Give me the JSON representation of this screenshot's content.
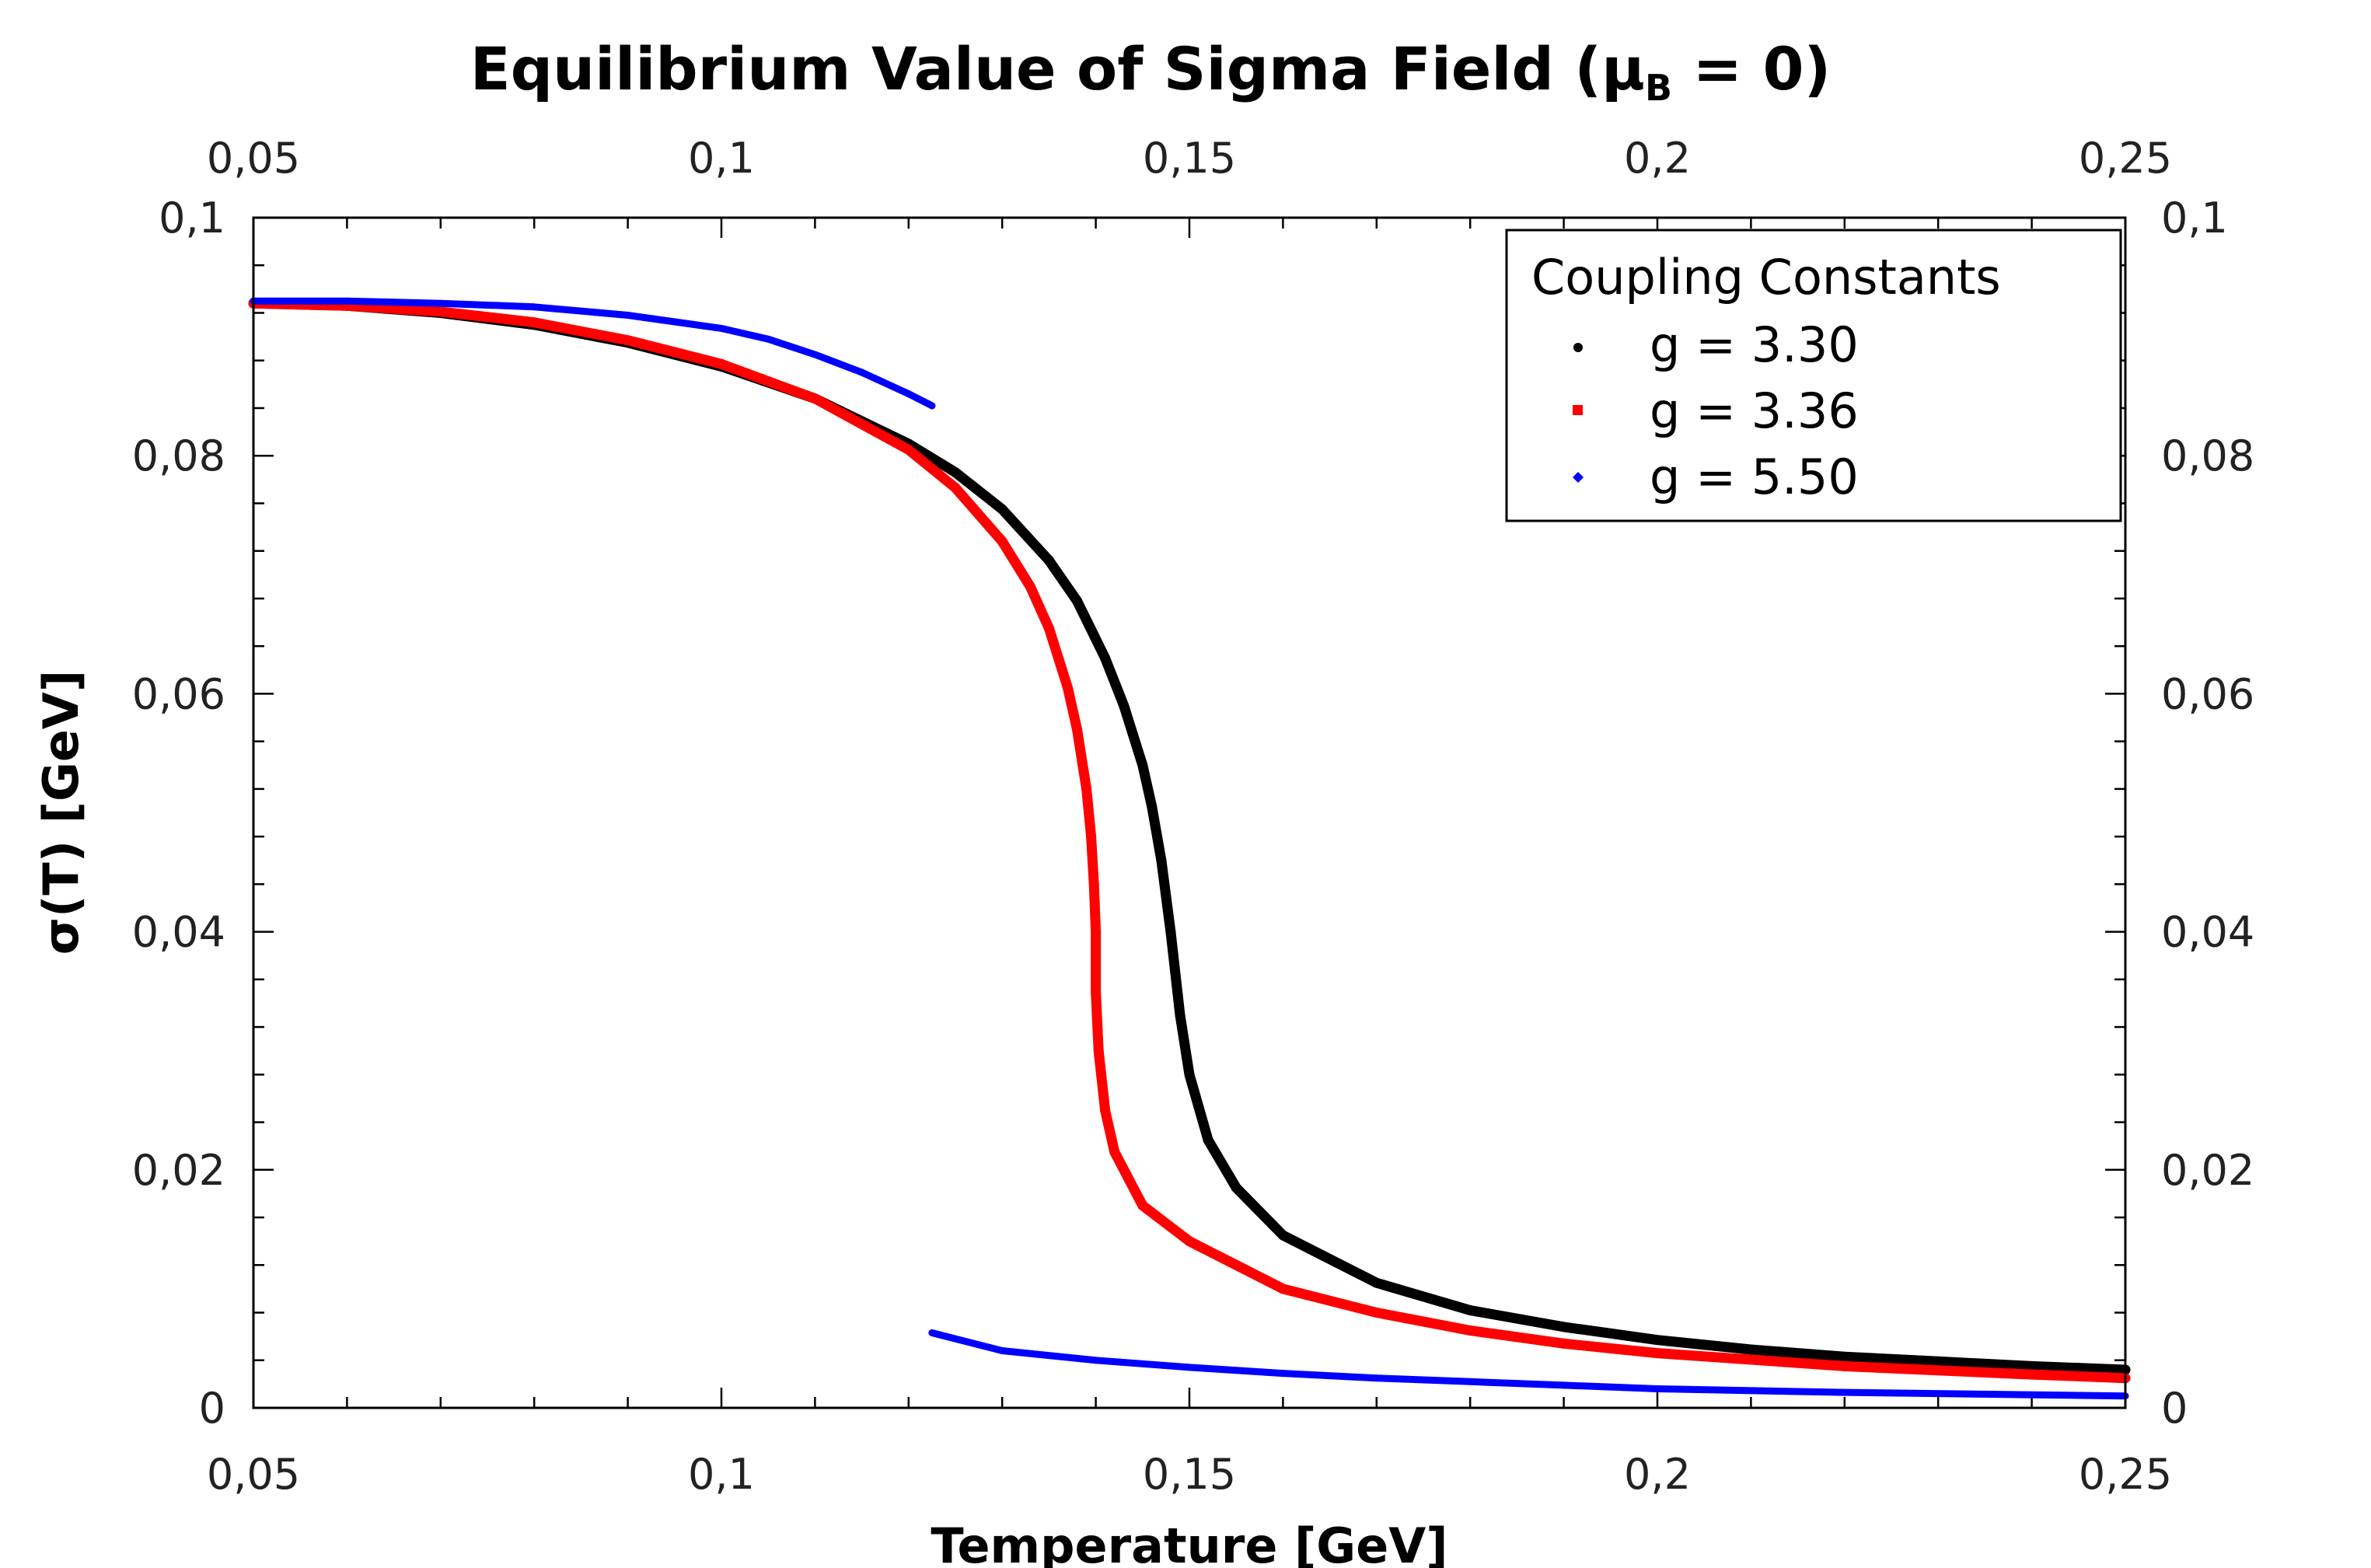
{
  "chart_data": {
    "type": "scatter",
    "title": "Equilibrium Value of Sigma Field (μ",
    "title_sub": "B",
    "title_tail": " = 0)",
    "xlabel": "Temperature [GeV]",
    "ylabel": "σ(T) [GeV]",
    "xlim": [
      0.05,
      0.25
    ],
    "ylim": [
      0,
      0.1
    ],
    "grid": false,
    "x_ticks": [
      0.05,
      0.1,
      0.15,
      0.2,
      0.25
    ],
    "x_tick_labels": [
      "0,05",
      "0,1",
      "0,15",
      "0,2",
      "0,25"
    ],
    "y_ticks": [
      0,
      0.02,
      0.04,
      0.06,
      0.08,
      0.1
    ],
    "y_tick_labels": [
      "0",
      "0,02",
      "0,04",
      "0,06",
      "0,08",
      "0,1"
    ],
    "legend": {
      "title": "Coupling Constants",
      "placement": "top-right",
      "entries": [
        "g = 3.30",
        "g = 3.36",
        "g = 5.50"
      ]
    },
    "series": [
      {
        "name": "g = 3.30",
        "color": "#000000",
        "points": [
          [
            0.05,
            0.0928
          ],
          [
            0.06,
            0.0926
          ],
          [
            0.07,
            0.092
          ],
          [
            0.08,
            0.091
          ],
          [
            0.09,
            0.0895
          ],
          [
            0.1,
            0.0875
          ],
          [
            0.11,
            0.0848
          ],
          [
            0.12,
            0.081
          ],
          [
            0.125,
            0.0786
          ],
          [
            0.13,
            0.0755
          ],
          [
            0.135,
            0.0712
          ],
          [
            0.138,
            0.0678
          ],
          [
            0.141,
            0.063
          ],
          [
            0.143,
            0.059
          ],
          [
            0.145,
            0.054
          ],
          [
            0.146,
            0.0505
          ],
          [
            0.147,
            0.046
          ],
          [
            0.148,
            0.04
          ],
          [
            0.149,
            0.033
          ],
          [
            0.15,
            0.028
          ],
          [
            0.152,
            0.0225
          ],
          [
            0.155,
            0.0185
          ],
          [
            0.16,
            0.0145
          ],
          [
            0.17,
            0.0105
          ],
          [
            0.18,
            0.0082
          ],
          [
            0.19,
            0.0068
          ],
          [
            0.2,
            0.0057
          ],
          [
            0.21,
            0.0049
          ],
          [
            0.22,
            0.0043
          ],
          [
            0.23,
            0.0039
          ],
          [
            0.24,
            0.0035
          ],
          [
            0.25,
            0.0032
          ]
        ]
      },
      {
        "name": "g = 3.36",
        "color": "#ff0000",
        "points": [
          [
            0.05,
            0.0928
          ],
          [
            0.06,
            0.0926
          ],
          [
            0.07,
            0.0921
          ],
          [
            0.08,
            0.0912
          ],
          [
            0.09,
            0.0897
          ],
          [
            0.1,
            0.0877
          ],
          [
            0.11,
            0.0848
          ],
          [
            0.12,
            0.0805
          ],
          [
            0.125,
            0.0773
          ],
          [
            0.13,
            0.0728
          ],
          [
            0.133,
            0.069
          ],
          [
            0.135,
            0.0655
          ],
          [
            0.137,
            0.0605
          ],
          [
            0.138,
            0.057
          ],
          [
            0.139,
            0.052
          ],
          [
            0.1395,
            0.048
          ],
          [
            0.1398,
            0.044
          ],
          [
            0.14,
            0.04
          ],
          [
            0.14,
            0.035
          ],
          [
            0.1403,
            0.03
          ],
          [
            0.141,
            0.025
          ],
          [
            0.142,
            0.0215
          ],
          [
            0.145,
            0.017
          ],
          [
            0.15,
            0.014
          ],
          [
            0.16,
            0.01
          ],
          [
            0.17,
            0.008
          ],
          [
            0.18,
            0.0065
          ],
          [
            0.19,
            0.0054
          ],
          [
            0.2,
            0.0046
          ],
          [
            0.22,
            0.0035
          ],
          [
            0.24,
            0.0028
          ],
          [
            0.25,
            0.0025
          ]
        ]
      },
      {
        "name": "g = 5.50",
        "color": "#0000ff",
        "segments": [
          [
            [
              0.05,
              0.093
            ],
            [
              0.06,
              0.093
            ],
            [
              0.07,
              0.0928
            ],
            [
              0.08,
              0.0925
            ],
            [
              0.09,
              0.0918
            ],
            [
              0.1,
              0.0907
            ],
            [
              0.105,
              0.0898
            ],
            [
              0.11,
              0.0885
            ],
            [
              0.115,
              0.087
            ],
            [
              0.12,
              0.0852
            ],
            [
              0.1225,
              0.0842
            ]
          ],
          [
            [
              0.1225,
              0.0063
            ],
            [
              0.13,
              0.0048
            ],
            [
              0.14,
              0.004
            ],
            [
              0.15,
              0.0034
            ],
            [
              0.16,
              0.0029
            ],
            [
              0.17,
              0.0025
            ],
            [
              0.18,
              0.0022
            ],
            [
              0.19,
              0.0019
            ],
            [
              0.2,
              0.0016
            ],
            [
              0.22,
              0.0013
            ],
            [
              0.25,
              0.001
            ]
          ]
        ]
      }
    ]
  }
}
